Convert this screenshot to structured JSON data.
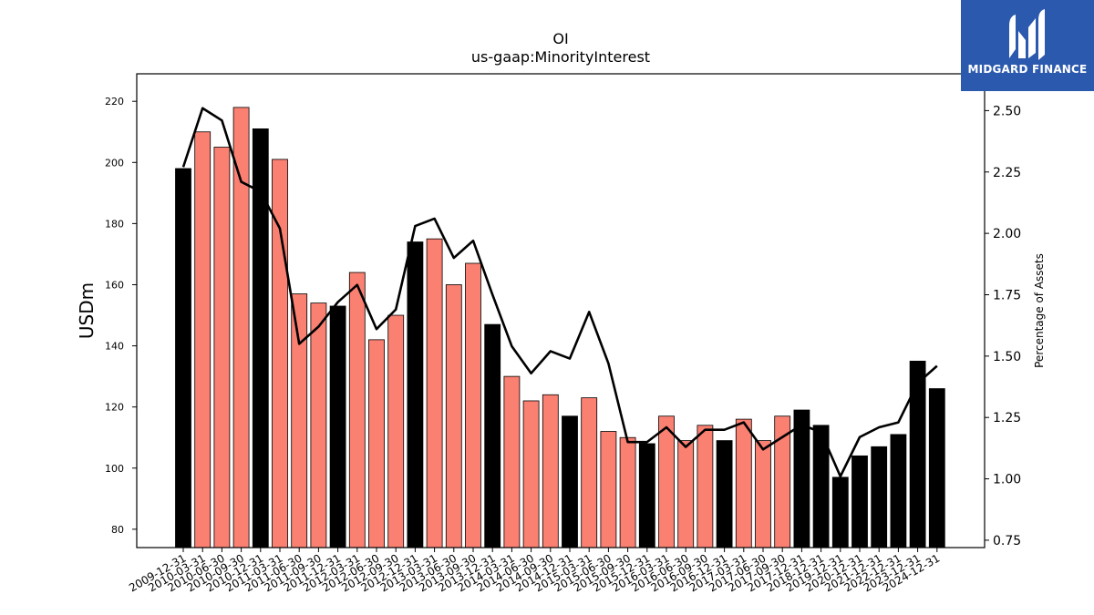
{
  "chart_data": {
    "type": "bar",
    "title": "OI",
    "subtitle": "us-gaap:MinorityInterest",
    "ylabel": "USDm",
    "y2label": "Percentage of Assets",
    "ylim": [
      74,
      229
    ],
    "y2lim": [
      0.72,
      2.65
    ],
    "yticks": [
      80,
      100,
      120,
      140,
      160,
      180,
      200,
      220
    ],
    "y2ticks": [
      0.75,
      1.0,
      1.25,
      1.5,
      1.75,
      2.0,
      2.25,
      2.5
    ],
    "grid": false,
    "legend": "none",
    "colors": {
      "annual": "#000000",
      "quarterly": "#fa8072",
      "line": "#000000"
    },
    "categories": [
      "2009-12-31",
      "2010-03-31",
      "2010-06-30",
      "2010-09-30",
      "2010-12-31",
      "2011-03-31",
      "2011-06-30",
      "2011-09-30",
      "2011-12-31",
      "2012-03-31",
      "2012-06-30",
      "2012-09-30",
      "2012-12-31",
      "2013-03-31",
      "2013-06-30",
      "2013-09-30",
      "2013-12-31",
      "2014-03-31",
      "2014-06-30",
      "2014-09-30",
      "2014-12-31",
      "2015-03-31",
      "2015-06-30",
      "2015-09-30",
      "2015-12-31",
      "2016-03-31",
      "2016-06-30",
      "2016-09-30",
      "2016-12-31",
      "2017-03-31",
      "2017-06-30",
      "2017-09-30",
      "2017-12-31",
      "2018-12-31",
      "2019-12-31",
      "2020-12-31",
      "2021-12-31",
      "2022-12-31",
      "2023-12-31",
      "2024-12-31"
    ],
    "series": [
      {
        "kind": "bar",
        "values": [
          198,
          210,
          205,
          218,
          211,
          201,
          157,
          154,
          153,
          164,
          142,
          150,
          174,
          175,
          160,
          167,
          147,
          130,
          122,
          124,
          117,
          123,
          112,
          110,
          108,
          117,
          109,
          114,
          109,
          116,
          109,
          117,
          119,
          114,
          97,
          104,
          107,
          111,
          135,
          126
        ],
        "is_annual": [
          true,
          false,
          false,
          false,
          true,
          false,
          false,
          false,
          true,
          false,
          false,
          false,
          true,
          false,
          false,
          false,
          true,
          false,
          false,
          false,
          true,
          false,
          false,
          false,
          true,
          false,
          false,
          false,
          true,
          false,
          false,
          false,
          true,
          true,
          true,
          true,
          true,
          true,
          true,
          true
        ]
      },
      {
        "kind": "line",
        "axis": "right",
        "values": [
          2.27,
          2.51,
          2.46,
          2.21,
          2.17,
          2.02,
          1.55,
          1.62,
          1.72,
          1.79,
          1.61,
          1.69,
          2.03,
          2.06,
          1.9,
          1.97,
          1.75,
          1.54,
          1.43,
          1.52,
          1.49,
          1.68,
          1.47,
          1.15,
          1.15,
          1.21,
          1.13,
          1.2,
          1.2,
          1.23,
          1.12,
          1.17,
          1.22,
          1.19,
          1.01,
          1.17,
          1.21,
          1.23,
          1.39,
          1.46
        ]
      }
    ]
  },
  "logo": {
    "text": "MIDGARD FINANCE"
  }
}
